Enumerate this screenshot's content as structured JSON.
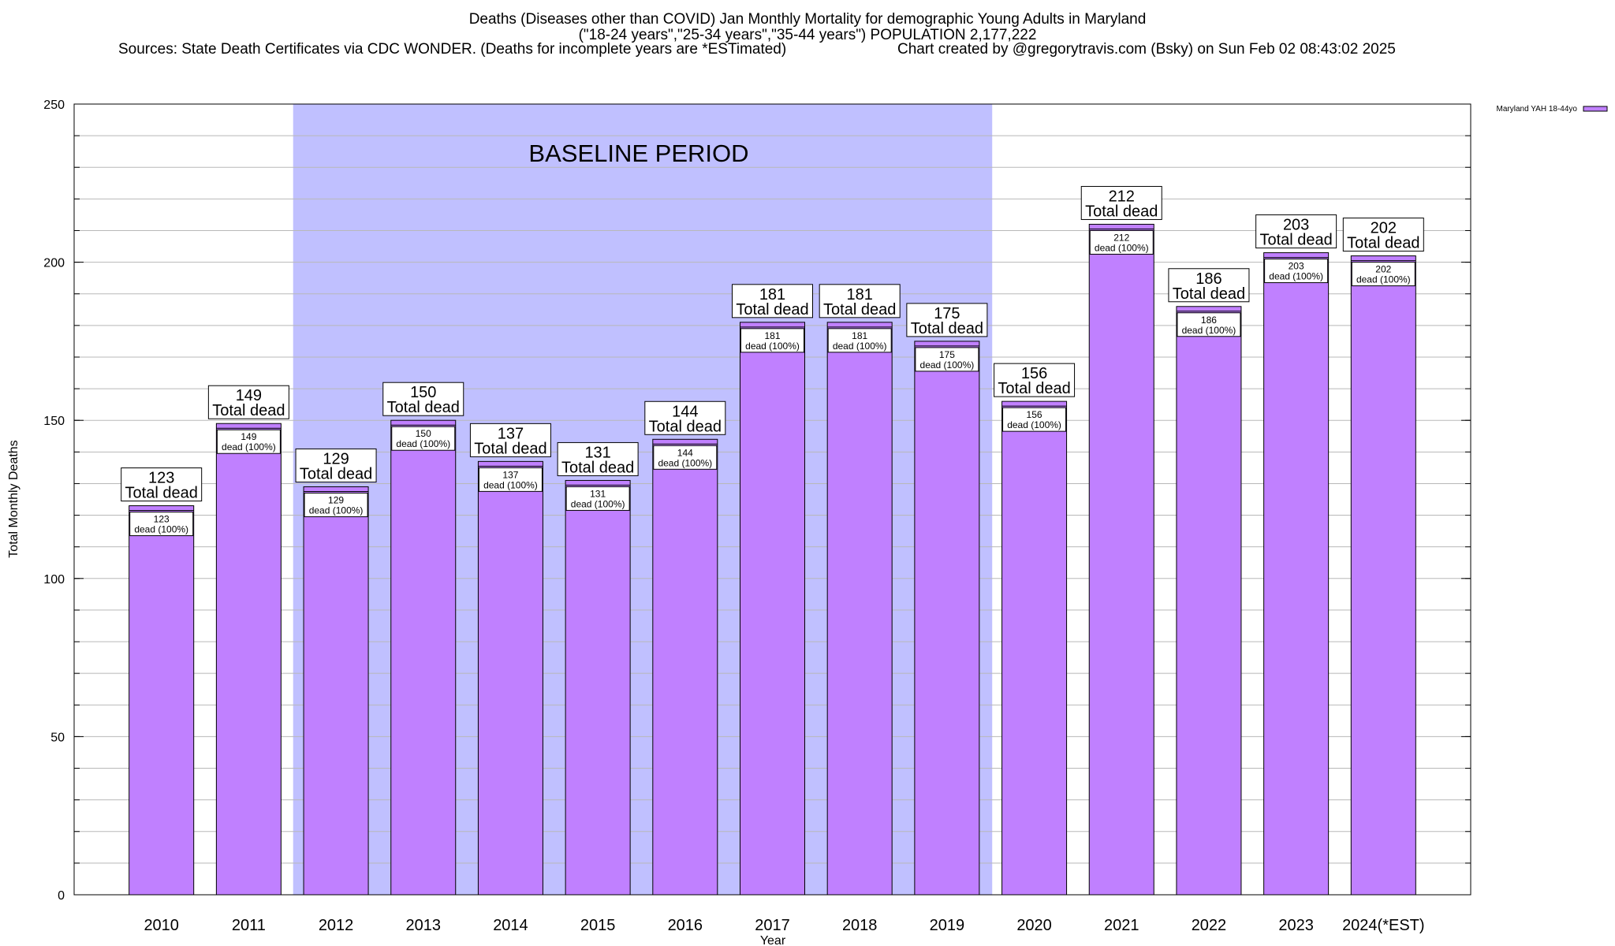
{
  "title": {
    "line1": "Deaths (Diseases other than COVID) Jan Monthly Mortality for demographic Young Adults in Maryland",
    "line2": "(\"18-24 years\",\"25-34 years\",\"35-44 years\") POPULATION 2,177,222",
    "sources": "Sources: State Death Certificates via CDC WONDER. (Deaths for incomplete years are *ESTimated)",
    "credit": "Chart created by @gregorytravis.com (Bsky) on Sun Feb 02 08:43:02 2025"
  },
  "chart_data": {
    "type": "bar",
    "title": "Deaths (Diseases other than COVID) Jan Monthly Mortality for demographic Young Adults in Maryland",
    "xlabel": "Year",
    "ylabel": "Total Monthly Deaths",
    "ylim": [
      0,
      250
    ],
    "yticks": [
      0,
      50,
      100,
      150,
      200,
      250
    ],
    "minor_tick_step": 10,
    "grid": true,
    "legend": {
      "label": "Maryland YAH 18-44yo",
      "placement": "top-right",
      "color": "#c080ff"
    },
    "categories": [
      "2010",
      "2011",
      "2012",
      "2013",
      "2014",
      "2015",
      "2016",
      "2017",
      "2018",
      "2019",
      "2020",
      "2021",
      "2022",
      "2023",
      "2024(*EST)"
    ],
    "values": [
      123,
      149,
      129,
      150,
      137,
      131,
      144,
      181,
      181,
      175,
      156,
      212,
      186,
      203,
      202
    ],
    "total_label": "Total dead",
    "inner_label": "dead (100%)",
    "baseline": {
      "label": "BASELINE PERIOD",
      "from": "2012",
      "to": "2019",
      "color": "#c0c0ff"
    },
    "bar_color": "#c080ff"
  }
}
